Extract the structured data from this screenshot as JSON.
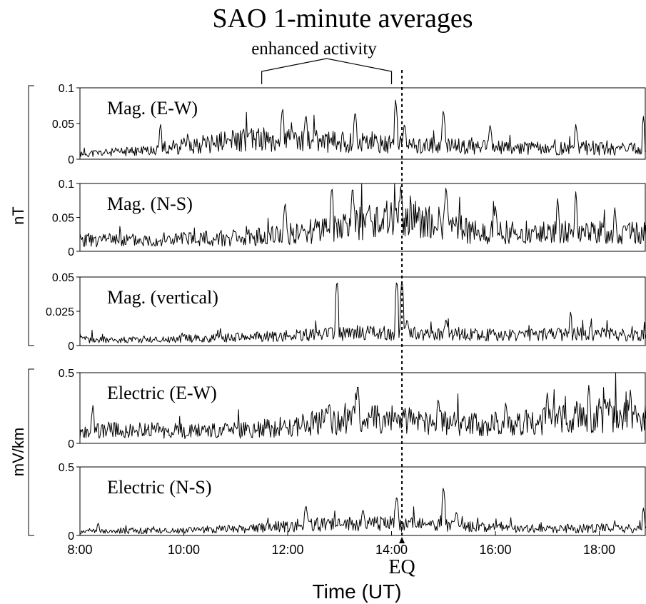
{
  "figure": {
    "title": "SAO 1-minute averages",
    "annotation": "enhanced activity",
    "event_label": "EQ",
    "xlabel": "Time (UT)",
    "group_labels": [
      "nT",
      "mV/km"
    ]
  },
  "chart_data": [
    {
      "type": "line",
      "label": "Mag. (E-W)",
      "unit": "nT",
      "ylim": [
        0,
        0.1
      ],
      "yticks": [
        "0.1",
        "0.05",
        "0"
      ],
      "seed": 11,
      "base": [
        0.008,
        0.012,
        0.022,
        0.03,
        0.028,
        0.024,
        0.02,
        0.018,
        0.016,
        0.016,
        0.015
      ],
      "noise": 0.9,
      "spikes": [
        {
          "t": 9.55,
          "v": 0.05
        },
        {
          "t": 11.9,
          "v": 0.075
        },
        {
          "t": 12.35,
          "v": 0.065
        },
        {
          "t": 13.3,
          "v": 0.07
        },
        {
          "t": 14.08,
          "v": 0.087
        },
        {
          "t": 14.25,
          "v": 0.052
        },
        {
          "t": 15.0,
          "v": 0.072
        },
        {
          "t": 15.9,
          "v": 0.05
        },
        {
          "t": 17.55,
          "v": 0.05
        },
        {
          "t": 18.85,
          "v": 0.06
        }
      ]
    },
    {
      "type": "line",
      "label": "Mag. (N-S)",
      "unit": "nT",
      "ylim": [
        0,
        0.1
      ],
      "yticks": [
        "0.1",
        "0.05",
        "0"
      ],
      "seed": 23,
      "base": [
        0.018,
        0.018,
        0.02,
        0.022,
        0.03,
        0.045,
        0.05,
        0.03,
        0.03,
        0.03,
        0.028
      ],
      "noise": 0.9,
      "spikes": [
        {
          "t": 11.95,
          "v": 0.075
        },
        {
          "t": 12.85,
          "v": 0.1
        },
        {
          "t": 13.25,
          "v": 0.1
        },
        {
          "t": 14.18,
          "v": 0.1
        },
        {
          "t": 15.05,
          "v": 0.1
        },
        {
          "t": 16.0,
          "v": 0.07
        },
        {
          "t": 17.2,
          "v": 0.08
        },
        {
          "t": 17.55,
          "v": 0.09
        },
        {
          "t": 18.3,
          "v": 0.065
        }
      ]
    },
    {
      "type": "line",
      "label": "Mag. (vertical)",
      "unit": "nT",
      "ylim": [
        0,
        0.05
      ],
      "yticks": [
        "0.05",
        "0.025",
        "0"
      ],
      "seed": 37,
      "base": [
        0.005,
        0.005,
        0.006,
        0.007,
        0.009,
        0.011,
        0.009,
        0.009,
        0.009,
        0.01,
        0.008
      ],
      "noise": 0.8,
      "spikes": [
        {
          "t": 12.95,
          "v": 0.05
        },
        {
          "t": 14.1,
          "v": 0.05
        },
        {
          "t": 14.2,
          "v": 0.05
        },
        {
          "t": 14.3,
          "v": 0.02
        },
        {
          "t": 15.05,
          "v": 0.02
        },
        {
          "t": 17.45,
          "v": 0.025
        }
      ]
    },
    {
      "type": "line",
      "label": "Electric (E-W)",
      "unit": "mV/km",
      "ylim": [
        0,
        0.5
      ],
      "yticks": [
        "0.5",
        "0"
      ],
      "seed": 53,
      "base": [
        0.1,
        0.1,
        0.09,
        0.1,
        0.15,
        0.19,
        0.17,
        0.14,
        0.16,
        0.21,
        0.22
      ],
      "noise": 0.9,
      "spikes": [
        {
          "t": 8.25,
          "v": 0.27
        },
        {
          "t": 12.8,
          "v": 0.3
        },
        {
          "t": 13.35,
          "v": 0.44
        },
        {
          "t": 14.9,
          "v": 0.33
        },
        {
          "t": 16.2,
          "v": 0.3
        },
        {
          "t": 17.0,
          "v": 0.37
        },
        {
          "t": 17.8,
          "v": 0.42
        },
        {
          "t": 18.6,
          "v": 0.38
        }
      ]
    },
    {
      "type": "line",
      "label": "Electric (N-S)",
      "unit": "mV/km",
      "ylim": [
        0,
        0.5
      ],
      "yticks": [
        "0.5",
        "0"
      ],
      "seed": 71,
      "base": [
        0.03,
        0.035,
        0.04,
        0.05,
        0.08,
        0.09,
        0.08,
        0.06,
        0.05,
        0.05,
        0.05
      ],
      "noise": 1.0,
      "spikes": [
        {
          "t": 8.35,
          "v": 0.09
        },
        {
          "t": 12.35,
          "v": 0.23
        },
        {
          "t": 13.45,
          "v": 0.2
        },
        {
          "t": 14.1,
          "v": 0.3
        },
        {
          "t": 15.0,
          "v": 0.37
        },
        {
          "t": 15.25,
          "v": 0.18
        },
        {
          "t": 18.85,
          "v": 0.2
        }
      ]
    }
  ],
  "xaxis": {
    "xlim": [
      8,
      18.9
    ],
    "ticks": [
      {
        "t": 8,
        "label": "8:00"
      },
      {
        "t": 10,
        "label": "10:00"
      },
      {
        "t": 12,
        "label": "12:00"
      },
      {
        "t": 14,
        "label": "14:00"
      },
      {
        "t": 16,
        "label": "16:00"
      },
      {
        "t": 18,
        "label": "18:00"
      }
    ]
  },
  "event": {
    "t": 14.2
  },
  "enhanced_range": [
    11.5,
    14.0
  ]
}
